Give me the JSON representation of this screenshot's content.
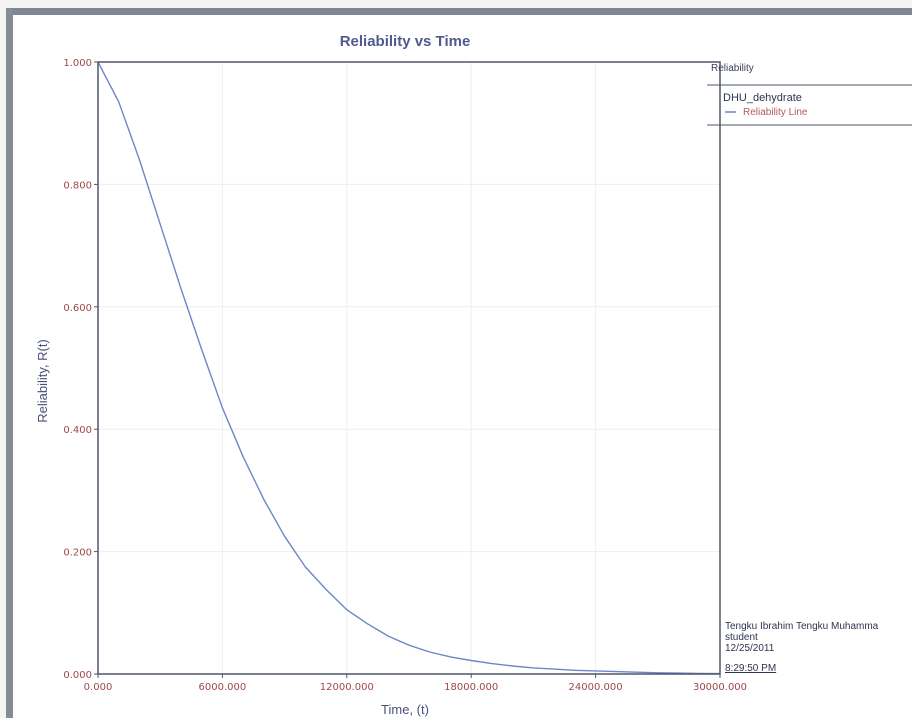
{
  "chart_data": {
    "type": "line",
    "title": "Reliability vs Time",
    "xlabel": "Time, (t)",
    "ylabel": "Reliability, R(t)",
    "xlim": [
      0,
      30000
    ],
    "ylim": [
      0,
      1
    ],
    "xticks": [
      "0.000",
      "6000.000",
      "12000.000",
      "18000.000",
      "24000.000",
      "30000.000"
    ],
    "yticks": [
      "0.000",
      "0.200",
      "0.400",
      "0.600",
      "0.800",
      "1.000"
    ],
    "grid": true,
    "legend_position": "right",
    "series": [
      {
        "name": "Reliability Line",
        "color": "#6e86c8",
        "x": [
          0,
          1000,
          2000,
          3000,
          4000,
          5000,
          6000,
          7000,
          8000,
          9000,
          10000,
          11000,
          12000,
          13000,
          14000,
          15000,
          16000,
          17000,
          18000,
          19000,
          20000,
          21000,
          22000,
          23000,
          24000,
          25000,
          26000,
          27000,
          28000,
          29000,
          30000
        ],
        "y": [
          1.0,
          0.935,
          0.84,
          0.735,
          0.63,
          0.53,
          0.435,
          0.355,
          0.285,
          0.225,
          0.175,
          0.138,
          0.105,
          0.082,
          0.062,
          0.047,
          0.036,
          0.028,
          0.022,
          0.017,
          0.013,
          0.01,
          0.008,
          0.006,
          0.005,
          0.004,
          0.003,
          0.002,
          0.0015,
          0.001,
          0.0007
        ]
      }
    ]
  },
  "legend": {
    "header": "Reliability",
    "dataset_name": "DHU_dehydrate",
    "series_label": "Reliability Line"
  },
  "info": {
    "user": "Tengku Ibrahim Tengku Muhamma",
    "role": "student",
    "date": "12/25/2011",
    "time": "8:29:50 PM"
  },
  "colors": {
    "frame": "#7f8794",
    "plot_border": "#4e5667",
    "grid": "#eeeeee",
    "tick_text": "#a04848",
    "title": "#515a8a"
  }
}
